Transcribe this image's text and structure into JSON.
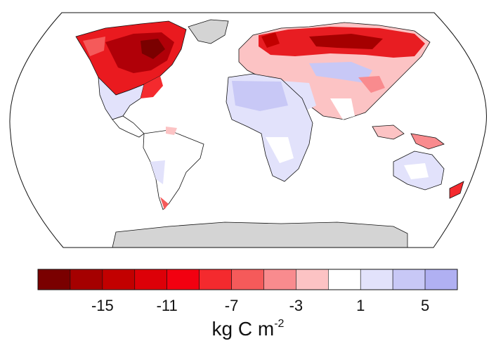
{
  "legend": {
    "unit_base": "kg C m",
    "unit_exponent": "-2",
    "bins": [
      {
        "color": "#7a0000"
      },
      {
        "color": "#a50000"
      },
      {
        "color": "#c20000"
      },
      {
        "color": "#dd0008"
      },
      {
        "color": "#f20010"
      },
      {
        "color": "#f42a2e"
      },
      {
        "color": "#f55a5a"
      },
      {
        "color": "#f98b8e"
      },
      {
        "color": "#fcc3c4"
      },
      {
        "color": "#ffffff"
      },
      {
        "color": "#e2e2fb"
      },
      {
        "color": "#c8c8f6"
      },
      {
        "color": "#b0b0f2"
      }
    ],
    "tick_labels": [
      "-15",
      "-11",
      "-7",
      "-3",
      "1",
      "5"
    ],
    "tick_positions_bin": [
      2,
      4,
      6,
      8,
      10,
      12
    ]
  },
  "map": {
    "projection": "Robinson",
    "colors": {
      "ocean": "#ffffff",
      "ice": "#d4d4d4",
      "coast": "#111111"
    }
  }
}
